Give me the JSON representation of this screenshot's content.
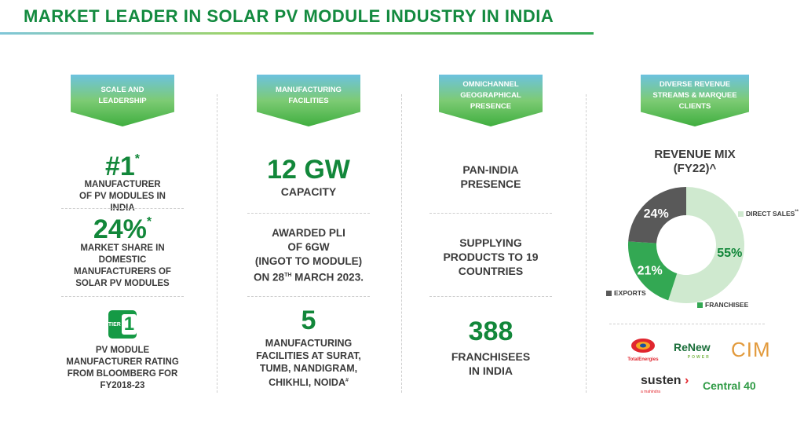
{
  "title": "MARKET LEADER IN SOLAR PV MODULE INDUSTRY IN INDIA",
  "col1": {
    "banner": "SCALE AND LEADERSHIP",
    "rank": "#1",
    "rank_star": "*",
    "rank_sub": "MANUFACTURER OF PV MODULES IN INDIA",
    "share": "24%",
    "share_star": "*",
    "share_sub": "MARKET SHARE IN DOMESTIC MANUFACTURERS OF SOLAR PV MODULES",
    "tier_label": "TIER",
    "tier_num": "1",
    "rating": "PV MODULE MANUFACTURER RATING FROM BLOOMBERG FOR FY2018-23"
  },
  "col2": {
    "banner": "MANUFACTURING FACILITIES",
    "capacity": "12 GW",
    "capacity_sub": "CAPACITY",
    "pli_1": "AWARDED PLI",
    "pli_2a": "OF ",
    "pli_2b": "6GW",
    "pli_3": "(INGOT TO MODULE)",
    "pli_4a": "ON 28",
    "pli_4sup": "TH",
    "pli_4b": " MARCH 2023.",
    "facilities": "5",
    "facilities_sub": "MANUFACTURING FACILITIES AT SURAT, TUMB, NANDIGRAM, CHIKHLI, NOIDA",
    "facilities_mark": "#"
  },
  "col3": {
    "banner": "OMNICHANNEL GEOGRAPHICAL PRESENCE",
    "presence": "PAN-INDIA PRESENCE",
    "supply": "SUPPLYING PRODUCTS TO 19 COUNTRIES",
    "franchisees": "388",
    "franchisees_sub": "FRANCHISEES IN INDIA"
  },
  "col4": {
    "banner": "DIVERSE REVENUE STREAMS & MARQUEE CLIENTS",
    "mix_title_1": "REVENUE MIX",
    "mix_title_2": "(FY22)^",
    "legend_direct": "DIRECT SALES",
    "legend_direct_mark": "**",
    "legend_exports": "EXPORTS",
    "legend_franchisee": "FRANCHISEE",
    "logos": {
      "total_name": "TotalEnergies",
      "renew_1": "ReNew",
      "renew_2": "POWER",
      "cim": "CIM",
      "susten": "susten",
      "susten_sub": "a mahindra",
      "central": "Central 40"
    }
  },
  "chart_data": {
    "type": "pie",
    "title": "REVENUE MIX (FY22)^",
    "categories": [
      "DIRECT SALES",
      "FRANCHISEE",
      "EXPORTS"
    ],
    "values": [
      55,
      21,
      24
    ],
    "labels": [
      "55%",
      "21%",
      "24%"
    ],
    "colors": [
      "#cfe9cf",
      "#33a853",
      "#595959"
    ],
    "donut": true
  }
}
